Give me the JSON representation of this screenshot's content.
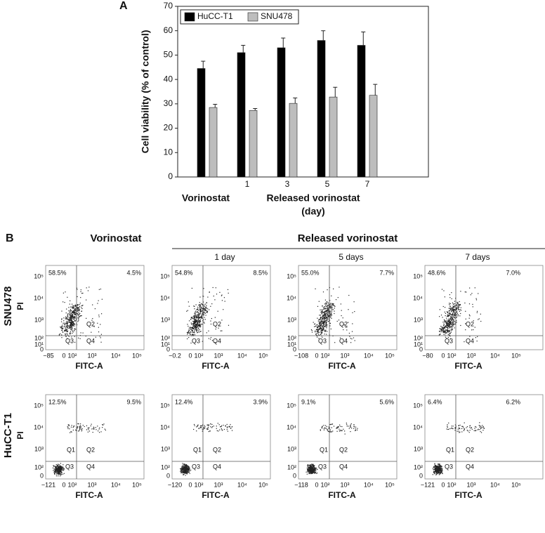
{
  "chart_data": {
    "type": "bar",
    "panel_label": "A",
    "ylabel": "Cell viability (% of control)",
    "categories": [
      null,
      "1",
      "3",
      "5",
      "7"
    ],
    "groups": [
      {
        "label": "Vorinostat"
      },
      {
        "label": "Released vorinostat",
        "sublabel": "(day)"
      }
    ],
    "series": [
      {
        "name": "HuCC-T1",
        "color": "#000000",
        "values": [
          44.5,
          51,
          53,
          56,
          54
        ],
        "errors": [
          3,
          3,
          4,
          4,
          5.5
        ]
      },
      {
        "name": "SNU478",
        "color": "#bdbdbd",
        "values": [
          28.5,
          27.3,
          30.2,
          32.8,
          33.5
        ],
        "errors": [
          1.3,
          0.8,
          2.2,
          4,
          4.5
        ]
      }
    ],
    "ylim": [
      0,
      70
    ],
    "yticks": [
      0,
      10,
      20,
      30,
      40,
      50,
      60,
      70
    ],
    "legend": "upper left"
  },
  "flow": {
    "panel_label": "B",
    "column_header": "Vorinostat",
    "group_header": "Released vorinostat",
    "subheaders": [
      "1 day",
      "5 days",
      "7 days"
    ],
    "xlabel": "FITC-A",
    "ylabel": "PI",
    "quadrants": [
      "Q1",
      "Q2",
      "Q3",
      "Q4"
    ],
    "x_ticks": [
      "0",
      "10²",
      "10³",
      "10⁴",
      "10⁵"
    ],
    "rows": [
      {
        "label": "SNU478",
        "y_ticks": [
          "10⁵",
          "10⁴",
          "10³",
          "10²",
          "10¹",
          "0"
        ],
        "plots": [
          {
            "q1": "58.5%",
            "q2": "4.5%",
            "x_min": "−85"
          },
          {
            "q1": "54.8%",
            "q2": "8.5%",
            "x_min": "−0.2"
          },
          {
            "q1": "55.0%",
            "q2": "7.7%",
            "x_min": "−108"
          },
          {
            "q1": "48.6%",
            "q2": "7.0%",
            "x_min": "−80"
          }
        ]
      },
      {
        "label": "HuCC-T1",
        "y_ticks": [
          "10⁵",
          "10⁴",
          "10³",
          "10²",
          "0"
        ],
        "plots": [
          {
            "q1": "12.5%",
            "q2": "9.5%",
            "x_min": "−121"
          },
          {
            "q1": "12.4%",
            "q2": "3.9%",
            "x_min": "−120"
          },
          {
            "q1": "9.1%",
            "q2": "5.6%",
            "x_min": "−118"
          },
          {
            "q1": "6.4%",
            "q2": "6.2%",
            "x_min": "−121"
          }
        ]
      }
    ]
  }
}
